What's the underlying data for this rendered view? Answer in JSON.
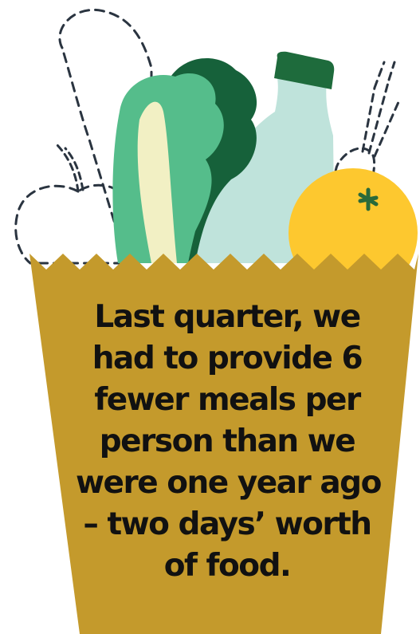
{
  "message": {
    "lines": [
      "Last quarter, we",
      "had to provide 6",
      "fewer meals per",
      "person than we",
      "were one year ago",
      "– two days’ worth",
      "of food."
    ]
  },
  "illustration": {
    "items": [
      "dashed-baguette-outline",
      "dashed-apple-outline",
      "dashed-carrot-outline",
      "lettuce",
      "milk-bottle",
      "orange"
    ],
    "container": "paper-grocery-bag",
    "colors": {
      "bag": "#c49a2c",
      "lettuce_light": "#55bd8b",
      "lettuce_dark": "#16613a",
      "lettuce_stem": "#f2f0c4",
      "bottle": "#bfe3db",
      "bottle_cap": "#1e6b3c",
      "orange": "#fdc82f",
      "orange_stem": "#2a6a3a",
      "outline": "#2a3440",
      "text": "#111111"
    }
  }
}
